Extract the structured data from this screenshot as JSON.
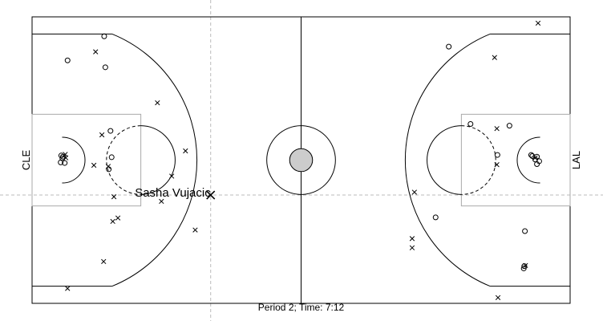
{
  "chart_data": {
    "type": "scatter",
    "title": "",
    "caption": "Period 2; Time: 7:12",
    "xlim": [
      0,
      94
    ],
    "ylim": [
      0,
      50
    ],
    "left_team": "CLE",
    "right_team": "LAL",
    "highlight": {
      "player": "Sasha Vujacic",
      "x": 31.2,
      "y": 18.9
    },
    "crosshair": {
      "x": 31.2,
      "y": 18.9
    },
    "series": [
      {
        "name": "made",
        "marker": "circle",
        "points": [
          [
            12.6,
            46.6
          ],
          [
            6.2,
            42.4
          ],
          [
            12.8,
            41.2
          ],
          [
            13.7,
            30.1
          ],
          [
            13.9,
            25.5
          ],
          [
            13.4,
            23.4
          ],
          [
            5.3,
            25.3
          ],
          [
            5.1,
            25.8
          ],
          [
            5.4,
            25.6
          ],
          [
            5.0,
            24.6
          ],
          [
            5.7,
            24.5
          ],
          [
            72.8,
            44.8
          ],
          [
            76.6,
            31.3
          ],
          [
            83.4,
            31.0
          ],
          [
            81.3,
            25.9
          ],
          [
            70.5,
            15.0
          ],
          [
            86.1,
            12.6
          ],
          [
            86.0,
            6.5
          ],
          [
            85.9,
            6.1
          ],
          [
            87.2,
            25.9
          ],
          [
            87.4,
            25.7
          ],
          [
            88.2,
            25.6
          ],
          [
            87.9,
            25.1
          ],
          [
            88.6,
            24.8
          ],
          [
            88.2,
            24.3
          ]
        ]
      },
      {
        "name": "missed",
        "marker": "x",
        "points": [
          [
            11.1,
            43.9
          ],
          [
            21.9,
            35.0
          ],
          [
            12.2,
            29.4
          ],
          [
            26.8,
            26.6
          ],
          [
            5.9,
            25.4
          ],
          [
            10.8,
            24.1
          ],
          [
            13.3,
            23.9
          ],
          [
            24.4,
            22.2
          ],
          [
            14.3,
            18.6
          ],
          [
            22.6,
            17.8
          ],
          [
            15.0,
            14.9
          ],
          [
            14.1,
            14.3
          ],
          [
            28.5,
            12.8
          ],
          [
            12.5,
            7.3
          ],
          [
            6.2,
            2.6
          ],
          [
            88.4,
            48.9
          ],
          [
            80.8,
            42.9
          ],
          [
            81.2,
            30.5
          ],
          [
            81.2,
            24.2
          ],
          [
            66.8,
            19.4
          ],
          [
            66.4,
            11.3
          ],
          [
            66.4,
            9.7
          ],
          [
            86.2,
            6.6
          ],
          [
            81.4,
            1.0
          ],
          [
            5.8,
            26.0
          ],
          [
            87.9,
            25.4
          ]
        ]
      }
    ]
  }
}
